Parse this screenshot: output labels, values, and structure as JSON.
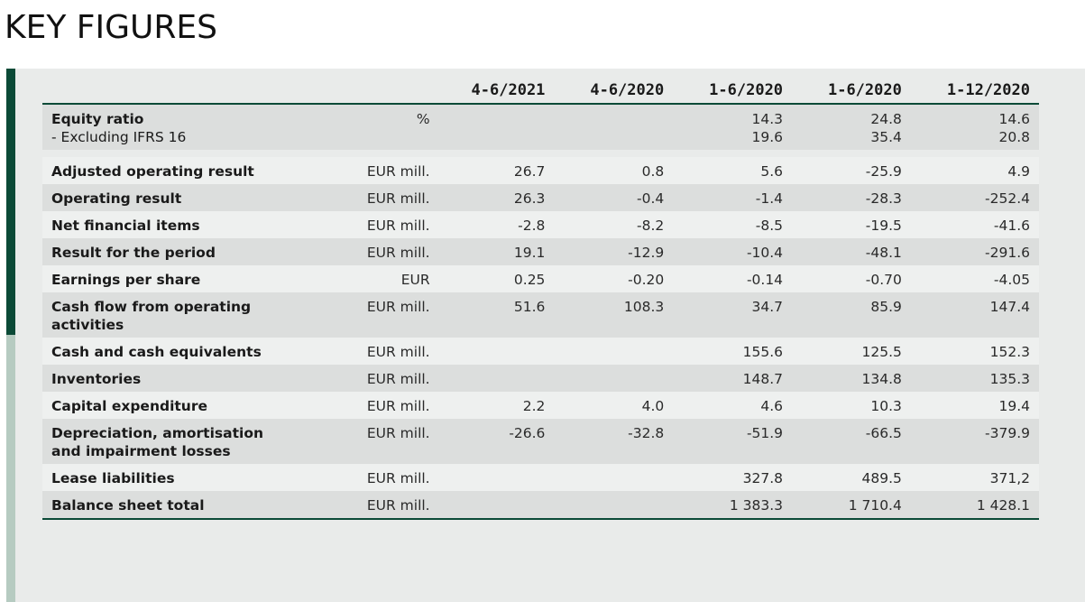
{
  "page": {
    "title": "KEY FIGURES"
  },
  "table": {
    "columns": [
      "4-6/2021",
      "4-6/2020",
      "1-6/2020",
      "1-6/2020",
      "1-12/2020"
    ],
    "equity": {
      "label": "Equity ratio",
      "sub_label": "- Excluding IFRS 16",
      "unit": "%",
      "values": [
        "",
        "",
        "14.3",
        "24.8",
        "14.6"
      ],
      "sub_values": [
        "",
        "",
        "19.6",
        "35.4",
        "20.8"
      ]
    },
    "rows": [
      {
        "label": "Adjusted operating result",
        "unit": "EUR mill.",
        "values": [
          "26.7",
          "0.8",
          "5.6",
          "-25.9",
          "4.9"
        ]
      },
      {
        "label": "Operating result",
        "unit": "EUR mill.",
        "values": [
          "26.3",
          "-0.4",
          "-1.4",
          "-28.3",
          "-252.4"
        ]
      },
      {
        "label": "Net financial items",
        "unit": "EUR mill.",
        "values": [
          "-2.8",
          "-8.2",
          "-8.5",
          "-19.5",
          "-41.6"
        ]
      },
      {
        "label": "Result for the period",
        "unit": "EUR mill.",
        "values": [
          "19.1",
          "-12.9",
          "-10.4",
          "-48.1",
          "-291.6"
        ]
      },
      {
        "label": "Earnings per share",
        "unit": "EUR",
        "values": [
          "0.25",
          "-0.20",
          "-0.14",
          "-0.70",
          "-4.05"
        ]
      },
      {
        "label": "Cash flow from operating activities",
        "unit": "EUR mill.",
        "values": [
          "51.6",
          "108.3",
          "34.7",
          "85.9",
          "147.4"
        ]
      },
      {
        "label": "Cash and cash equivalents",
        "unit": "EUR mill.",
        "values": [
          "",
          "",
          "155.6",
          "125.5",
          "152.3"
        ]
      },
      {
        "label": "Inventories",
        "unit": "EUR mill.",
        "values": [
          "",
          "",
          "148.7",
          "134.8",
          "135.3"
        ]
      },
      {
        "label": "Capital expenditure",
        "unit": "EUR mill.",
        "values": [
          "2.2",
          "4.0",
          "4.6",
          "10.3",
          "19.4"
        ]
      },
      {
        "label": "Depreciation, amortisation and impairment losses",
        "unit": "EUR mill.",
        "values": [
          "-26.6",
          "-32.8",
          "-51.9",
          "-66.5",
          "-379.9"
        ]
      },
      {
        "label": "Lease liabilities",
        "unit": "EUR mill.",
        "values": [
          "",
          "",
          "327.8",
          "489.5",
          "371,2"
        ]
      },
      {
        "label": "Balance sheet total",
        "unit": "EUR mill.",
        "values": [
          "",
          "",
          "1 383.3",
          "1 710.4",
          "1 428.1"
        ]
      }
    ]
  },
  "colors": {
    "accent_dark": "#0b4a37",
    "accent_light": "#b6cbc1",
    "panel_bg": "#e9ebea",
    "row_dark": "#dcdedd",
    "row_light": "#eef0ef"
  }
}
